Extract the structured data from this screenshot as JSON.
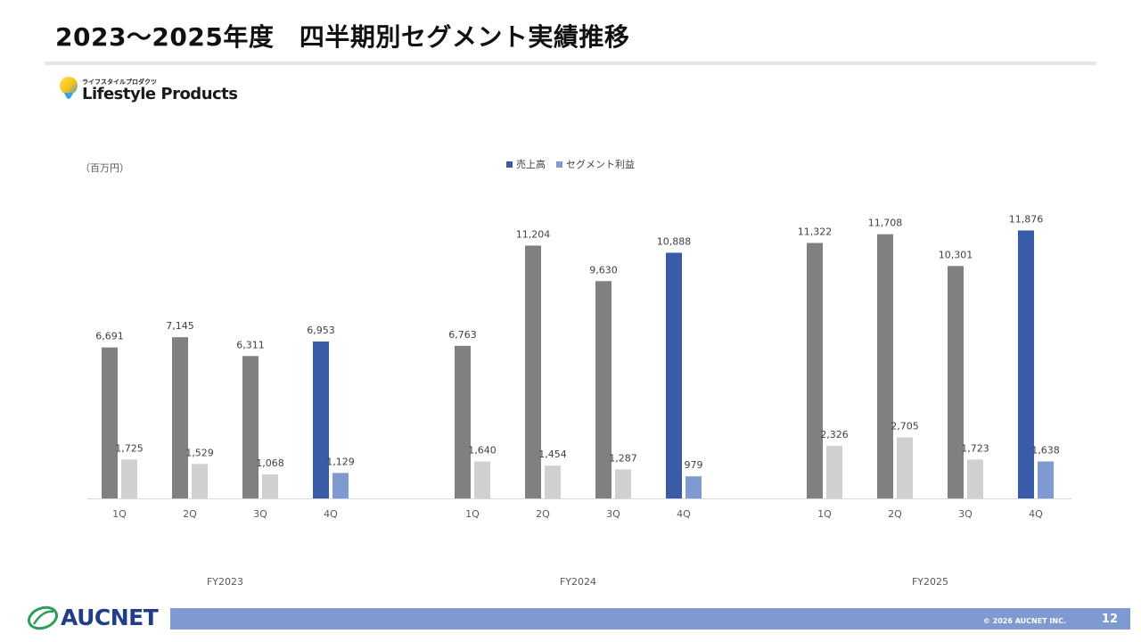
{
  "header": {
    "title": "2023〜2025年度　四半期別セグメント実績推移"
  },
  "segment_logo": {
    "kana": "ライフスタイルプロダクツ",
    "name": "Lifestyle Products",
    "icon": "lightbulb-icon"
  },
  "unit": "（百万円）",
  "colors": {
    "sales": "#808080",
    "profit": "#d0d0d0",
    "sales_highlight": "#3a5ba8",
    "profit_highlight": "#7f9ad1",
    "axis": "#d9d9d9"
  },
  "chart_data": {
    "type": "bar",
    "legend_position": "top-center",
    "grid": false,
    "ylim": [
      0,
      13000
    ],
    "legend": [
      "売上高",
      "セグメント利益"
    ],
    "groups": [
      {
        "label": "FY2023",
        "categories": [
          "1Q",
          "2Q",
          "3Q",
          "4Q"
        ],
        "sales": [
          6691,
          7145,
          6311,
          6953
        ],
        "profit": [
          1725,
          1529,
          1068,
          1129
        ]
      },
      {
        "label": "FY2024",
        "categories": [
          "1Q",
          "2Q",
          "3Q",
          "4Q"
        ],
        "sales": [
          6763,
          11204,
          9630,
          10888
        ],
        "profit": [
          1640,
          1454,
          1287,
          979
        ]
      },
      {
        "label": "FY2025",
        "categories": [
          "1Q",
          "2Q",
          "3Q",
          "4Q"
        ],
        "sales": [
          11322,
          11708,
          10301,
          11876
        ],
        "profit": [
          2326,
          2705,
          1723,
          1638
        ]
      }
    ],
    "highlight_category": "4Q"
  },
  "footer": {
    "brand": "AUCNET",
    "copyright": "© 2026 AUCNET INC.",
    "page_number": "12"
  }
}
